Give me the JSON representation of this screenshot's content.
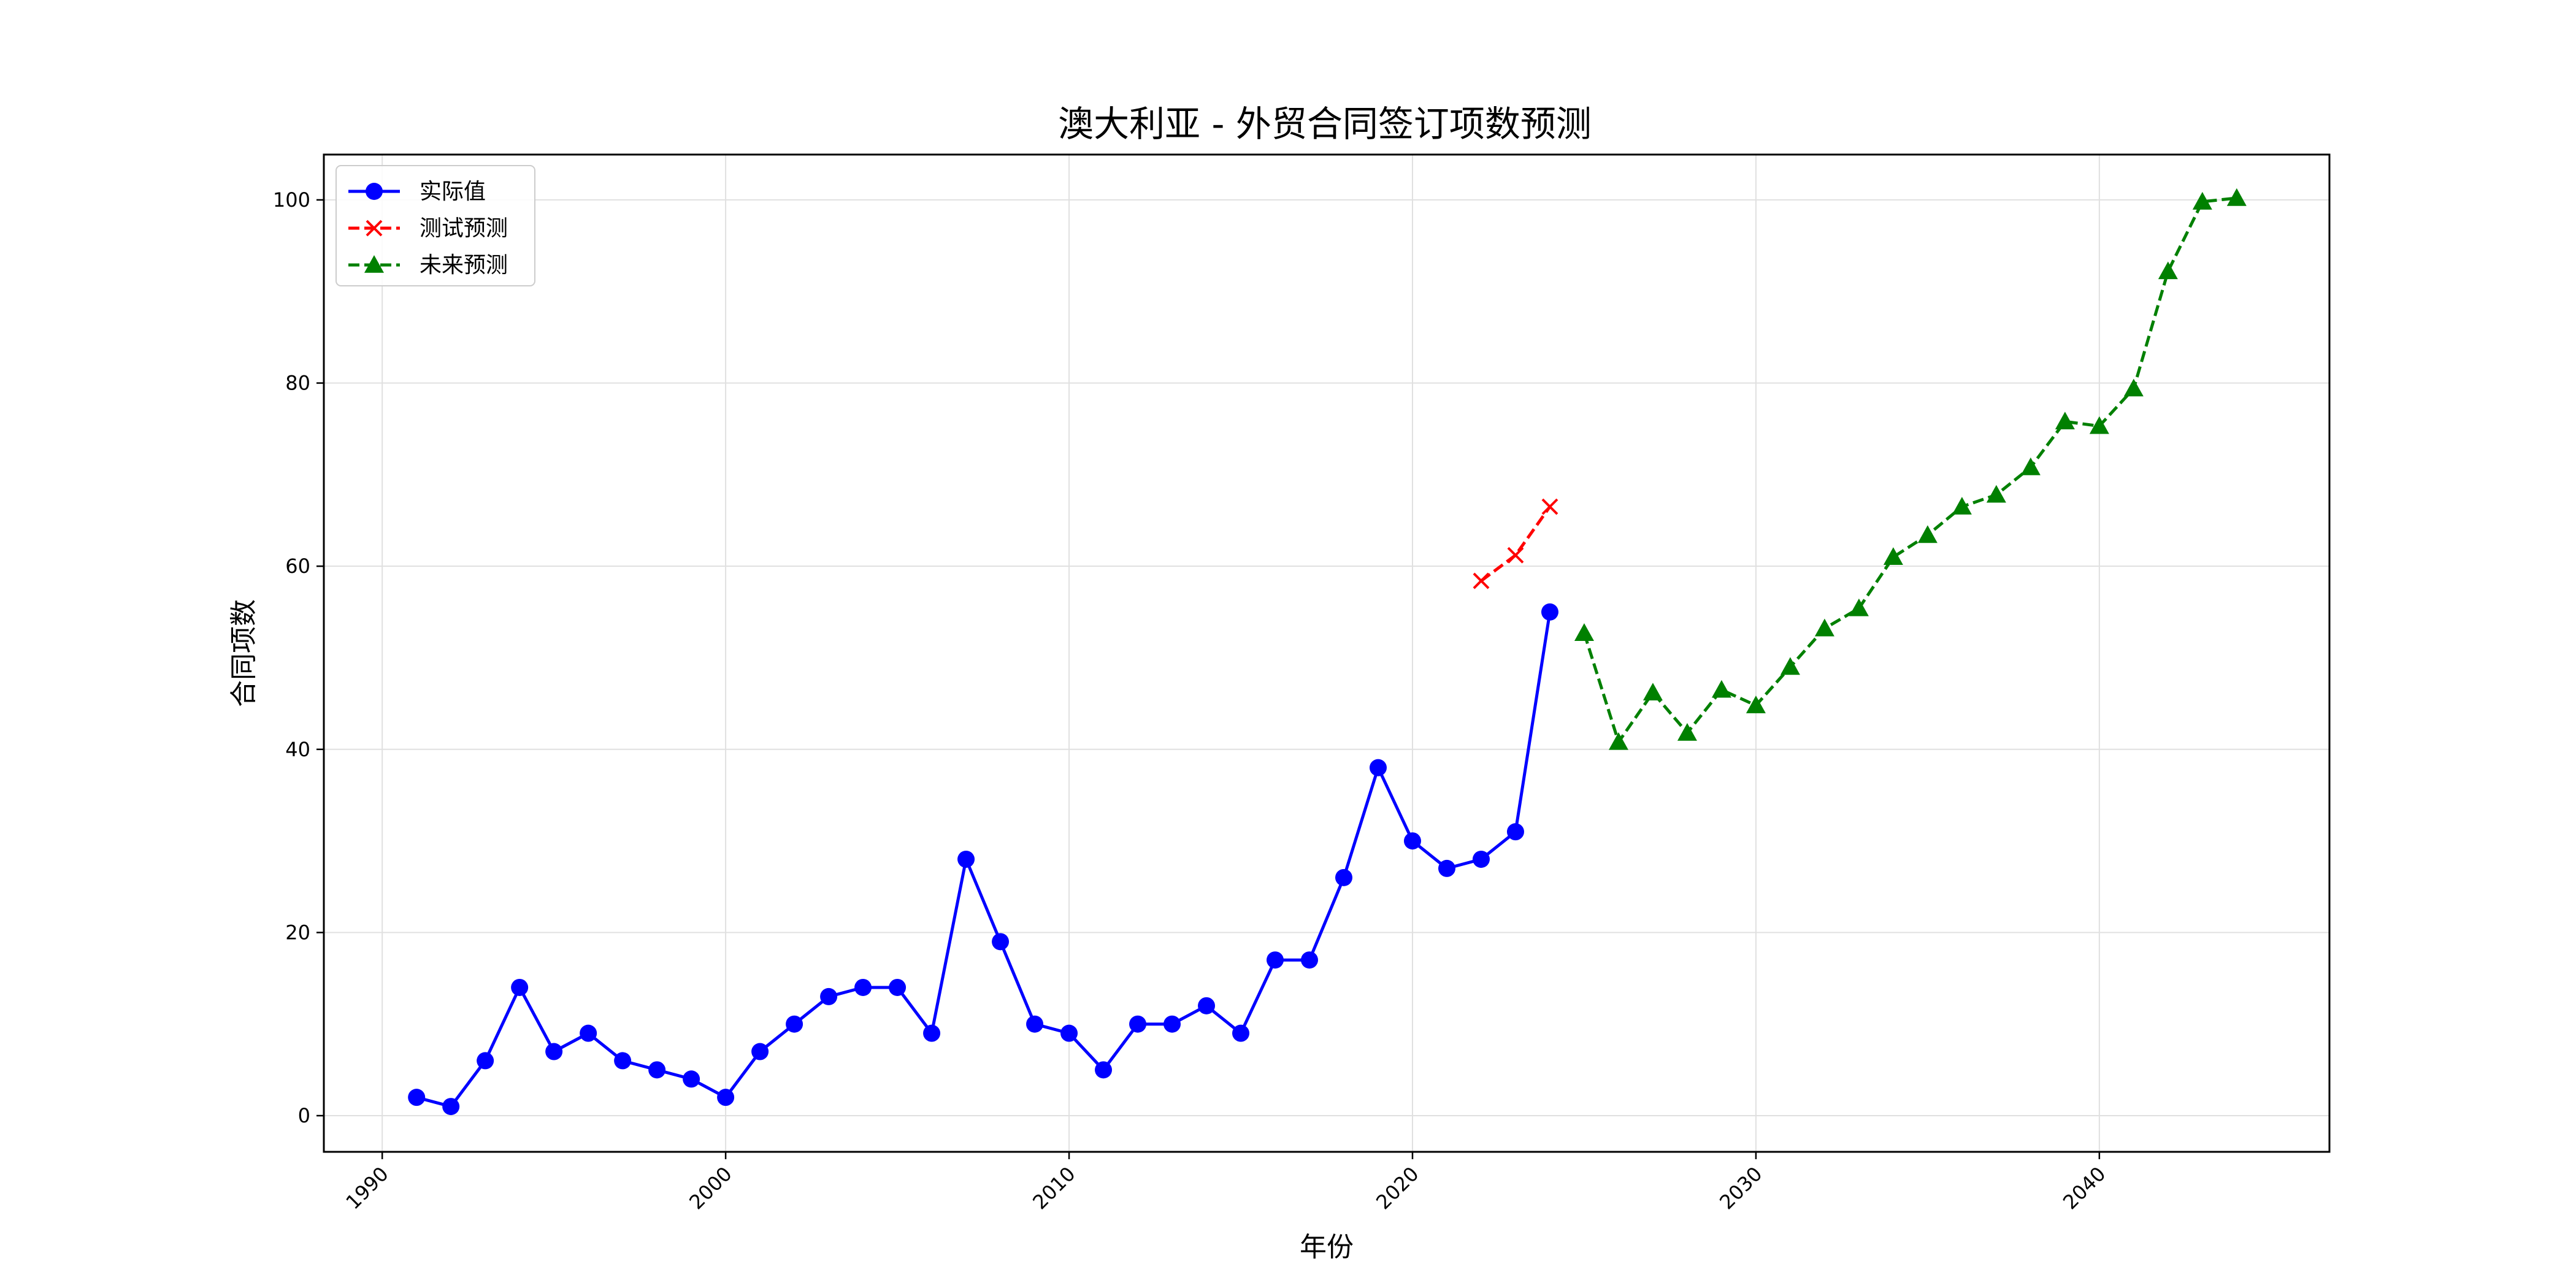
{
  "chart_data": {
    "type": "line",
    "title": "澳大利亚 - 外贸合同签订项数预测",
    "xlabel": "年份",
    "ylabel": "合同项数",
    "xlim": [
      1988.3,
      2046.7
    ],
    "ylim": [
      -3.95,
      104.95
    ],
    "x_ticks": [
      1990,
      2000,
      2010,
      2020,
      2030,
      2040
    ],
    "y_ticks": [
      0,
      20,
      40,
      60,
      80,
      100
    ],
    "grid": true,
    "legend_position": "upper-left",
    "series": [
      {
        "name": "实际值",
        "color": "#0000ff",
        "line_style": "solid",
        "marker": "circle",
        "x": [
          1991,
          1992,
          1993,
          1994,
          1995,
          1996,
          1997,
          1998,
          1999,
          2000,
          2001,
          2002,
          2003,
          2004,
          2005,
          2006,
          2007,
          2008,
          2009,
          2010,
          2011,
          2012,
          2013,
          2014,
          2015,
          2016,
          2017,
          2018,
          2019,
          2020,
          2021,
          2022,
          2023,
          2024
        ],
        "y": [
          2,
          1,
          6,
          14,
          7,
          9,
          6,
          5,
          4,
          2,
          7,
          10,
          13,
          14,
          14,
          9,
          28,
          19,
          10,
          9,
          5,
          10,
          10,
          12,
          9,
          17,
          17,
          26,
          38,
          30,
          27,
          28,
          31,
          55
        ]
      },
      {
        "name": "测试预测",
        "color": "#ff0000",
        "line_style": "dashed",
        "marker": "x",
        "x": [
          2022,
          2023,
          2024
        ],
        "y": [
          58.4,
          61.2,
          66.5
        ]
      },
      {
        "name": "未来预测",
        "color": "#008000",
        "line_style": "dashed",
        "marker": "triangle",
        "x": [
          2025,
          2026,
          2027,
          2028,
          2029,
          2030,
          2031,
          2032,
          2033,
          2034,
          2035,
          2036,
          2037,
          2038,
          2039,
          2040,
          2041,
          2042,
          2043,
          2044
        ],
        "y": [
          52.7,
          40.8,
          46.2,
          41.8,
          46.5,
          44.8,
          49.0,
          53.2,
          55.4,
          61.0,
          63.4,
          66.5,
          67.8,
          70.8,
          75.8,
          75.3,
          79.4,
          92.2,
          99.8,
          100.2
        ]
      }
    ]
  }
}
